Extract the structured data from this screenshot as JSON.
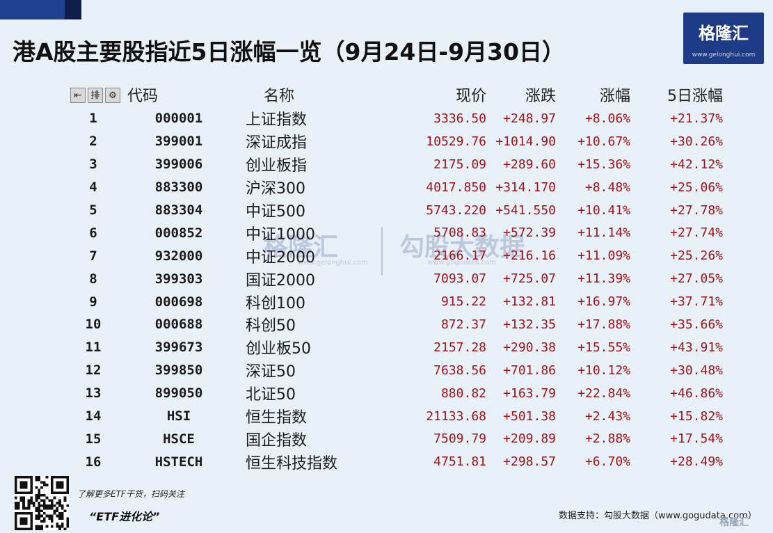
{
  "header": {
    "title": "港A股主要股指近5日涨幅一览（9月24日-9月30日）"
  },
  "logo": {
    "name": "格隆汇",
    "url": "www.gelonghui.com"
  },
  "toolbar": {
    "buttons": [
      "⇤",
      "排",
      "⚙"
    ]
  },
  "table": {
    "headers": {
      "code": "代码",
      "name": "名称",
      "price": "现价",
      "change": "涨跌",
      "pct": "涨幅",
      "pct5": "5日涨幅"
    },
    "rows": [
      {
        "num": "1",
        "code": "000001",
        "name": "上证指数",
        "price": "3336.50",
        "change": "+248.97",
        "pct": "+8.06%",
        "pct5": "+21.37%"
      },
      {
        "num": "2",
        "code": "399001",
        "name": "深证成指",
        "price": "10529.76",
        "change": "+1014.90",
        "pct": "+10.67%",
        "pct5": "+30.26%"
      },
      {
        "num": "3",
        "code": "399006",
        "name": "创业板指",
        "price": "2175.09",
        "change": "+289.60",
        "pct": "+15.36%",
        "pct5": "+42.12%"
      },
      {
        "num": "4",
        "code": "883300",
        "name": "沪深300",
        "price": "4017.850",
        "change": "+314.170",
        "pct": "+8.48%",
        "pct5": "+25.06%"
      },
      {
        "num": "5",
        "code": "883304",
        "name": "中证500",
        "price": "5743.220",
        "change": "+541.550",
        "pct": "+10.41%",
        "pct5": "+27.78%"
      },
      {
        "num": "6",
        "code": "000852",
        "name": "中证1000",
        "price": "5708.83",
        "change": "+572.39",
        "pct": "+11.14%",
        "pct5": "+27.74%"
      },
      {
        "num": "7",
        "code": "932000",
        "name": "中证2000",
        "price": "2166.17",
        "change": "+216.16",
        "pct": "+11.09%",
        "pct5": "+25.26%"
      },
      {
        "num": "8",
        "code": "399303",
        "name": "国证2000",
        "price": "7093.07",
        "change": "+725.07",
        "pct": "+11.39%",
        "pct5": "+27.05%"
      },
      {
        "num": "9",
        "code": "000698",
        "name": "科创100",
        "price": "915.22",
        "change": "+132.81",
        "pct": "+16.97%",
        "pct5": "+37.71%"
      },
      {
        "num": "10",
        "code": "000688",
        "name": "科创50",
        "price": "872.37",
        "change": "+132.35",
        "pct": "+17.88%",
        "pct5": "+35.66%"
      },
      {
        "num": "11",
        "code": "399673",
        "name": "创业板50",
        "price": "2157.28",
        "change": "+290.38",
        "pct": "+15.55%",
        "pct5": "+43.91%"
      },
      {
        "num": "12",
        "code": "399850",
        "name": "深证50",
        "price": "7638.56",
        "change": "+701.86",
        "pct": "+10.12%",
        "pct5": "+30.48%"
      },
      {
        "num": "13",
        "code": "899050",
        "name": "北证50",
        "price": "880.82",
        "change": "+163.79",
        "pct": "+22.84%",
        "pct5": "+46.86%"
      },
      {
        "num": "14",
        "code": "HSI",
        "name": "恒生指数",
        "price": "21133.68",
        "change": "+501.38",
        "pct": "+2.43%",
        "pct5": "+15.82%"
      },
      {
        "num": "15",
        "code": "HSCE",
        "name": "国企指数",
        "price": "7509.79",
        "change": "+209.89",
        "pct": "+2.88%",
        "pct5": "+17.54%"
      },
      {
        "num": "16",
        "code": "HSTECH",
        "name": "恒生科技指数",
        "price": "4751.81",
        "change": "+298.57",
        "pct": "+6.70%",
        "pct5": "+28.49%"
      }
    ]
  },
  "watermark": {
    "left": "格隆汇",
    "left_sub": "www.gelonghui.com",
    "right": "勾股大数据",
    "right_sub": "www.gogudata.com"
  },
  "footer": {
    "note": "了解更多ETF干货，扫码关注",
    "brand": "“ETF进化论”",
    "source": "数据支持：勾股大数据（www.gogudata.com）",
    "corner_logo": "格隆汇"
  },
  "colors": {
    "background": "#e9f1f8",
    "brand_blue": "#1d3b86",
    "value_red": "#a01218"
  }
}
